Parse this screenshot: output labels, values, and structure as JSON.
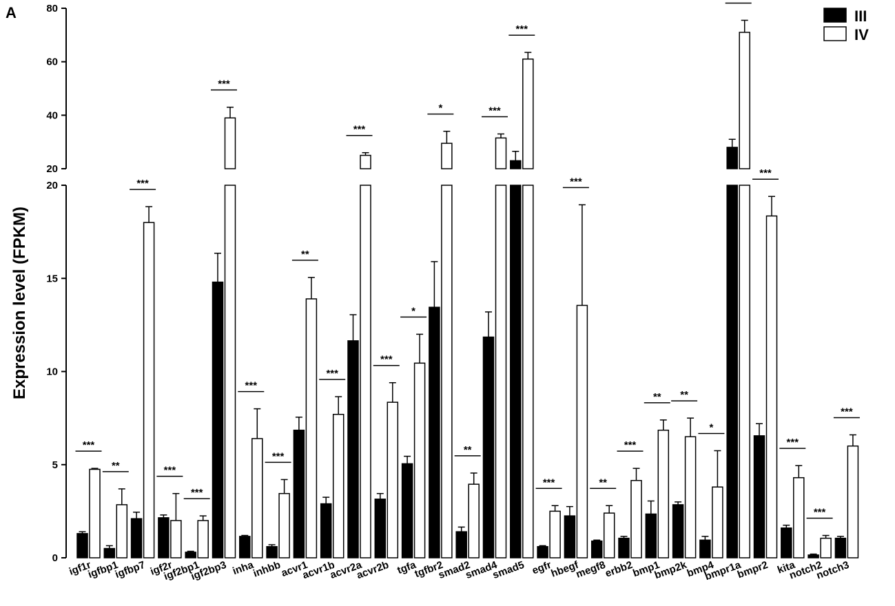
{
  "panel_label": "A",
  "chart_data": {
    "type": "bar",
    "ylabel": "Expression level (FPKM)",
    "xlabel": "",
    "title": "",
    "y_axis_break": {
      "lower_range": [
        0,
        20
      ],
      "upper_range": [
        20,
        80
      ],
      "lower_ticks": [
        "0",
        "5",
        "10",
        "15",
        "20"
      ],
      "upper_ticks": [
        "20",
        "40",
        "60",
        "80"
      ]
    },
    "legend": {
      "placement": "top-right"
    },
    "grid": false,
    "categories": [
      "igf1r",
      "igfbp1",
      "igfbp7",
      "igf2r",
      "igf2bp1",
      "igf2bp3",
      "inha",
      "inhbb",
      "acvr1",
      "acvr1b",
      "acvr2a",
      "acvr2b",
      "tgfa",
      "tgfbr2",
      "smad2",
      "smad4",
      "smad5",
      "egfr",
      "hbegf",
      "megf8",
      "erbb2",
      "bmp1",
      "bmp2k",
      "bmp4",
      "bmpr1a",
      "bmpr2",
      "kita",
      "notch2",
      "notch3"
    ],
    "series": [
      {
        "name": "III",
        "color": "#000000",
        "values": [
          1.3,
          0.5,
          2.1,
          2.15,
          0.3,
          14.8,
          1.15,
          0.6,
          6.85,
          2.9,
          11.65,
          3.15,
          5.05,
          13.45,
          1.4,
          11.85,
          23,
          0.6,
          2.25,
          0.9,
          1.05,
          2.35,
          2.85,
          0.95,
          28,
          6.55,
          1.6,
          0.15,
          1.05
        ],
        "errors": [
          0.1,
          0.15,
          0.35,
          0.15,
          0.05,
          1.55,
          0.05,
          0.1,
          0.7,
          0.35,
          1.4,
          0.3,
          0.4,
          2.45,
          0.25,
          1.35,
          3.5,
          0.05,
          0.5,
          0.05,
          0.1,
          0.7,
          0.15,
          0.2,
          3,
          0.65,
          0.15,
          0.05,
          0.1
        ]
      },
      {
        "name": "IV",
        "color": "#ffffff",
        "values": [
          4.75,
          2.85,
          18,
          2.0,
          2.0,
          39,
          6.4,
          3.45,
          13.9,
          7.7,
          25,
          8.35,
          10.45,
          29.5,
          3.95,
          31.5,
          61,
          2.5,
          13.55,
          2.4,
          4.15,
          6.85,
          6.5,
          3.8,
          71,
          18.35,
          4.3,
          1.05,
          6.0
        ],
        "errors": [
          0.05,
          0.85,
          0.85,
          1.45,
          0.25,
          4,
          1.6,
          0.75,
          1.15,
          0.95,
          1,
          1.05,
          1.55,
          4.5,
          0.6,
          1.5,
          2.5,
          0.3,
          5.4,
          0.4,
          0.65,
          0.55,
          1,
          1.95,
          4.5,
          1.05,
          0.65,
          0.15,
          0.6
        ]
      }
    ],
    "significance": [
      "***",
      "**",
      "***",
      "***",
      "***",
      "***",
      "***",
      "***",
      "**",
      "***",
      "***",
      "***",
      "*",
      "*",
      "**",
      "***",
      "***",
      "***",
      "***",
      "**",
      "***",
      "**",
      "**",
      "*",
      "***",
      "***",
      "***",
      "***",
      "***"
    ]
  }
}
